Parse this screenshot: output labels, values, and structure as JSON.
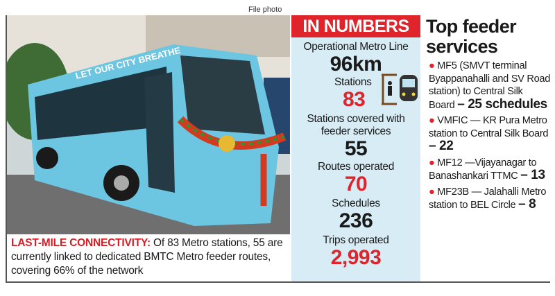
{
  "file_photo": "File photo",
  "bus_sign": "LET OUR CITY BREATHE",
  "photo_caption": {
    "lead": "LAST-MILE CONNECTIVITY:",
    "text": "Of 83 Metro stations, 55 are currently linked to dedicated BMTC Metro feeder routes, covering 66% of the network"
  },
  "numbers": {
    "title": "IN NUMBERS",
    "items": [
      {
        "label": "Operational Metro Line",
        "value": "96km"
      },
      {
        "label": "Stations",
        "value": 83
      },
      {
        "label": "Stations covered with feeder services",
        "value": 55
      },
      {
        "label": "Routes operated",
        "value": 70
      },
      {
        "label": "Schedules",
        "value": 236
      },
      {
        "label": "Trips operated",
        "value": "2,993"
      }
    ]
  },
  "feeder": {
    "title": "Top feeder services",
    "items": [
      {
        "text": "MF5 (SMVT terminal Byappanahalli and SV Road station) to Central Silk Board",
        "schedules": "– 25 schedules"
      },
      {
        "text": "VMFIC — KR Pura Metro station to Central Silk Board",
        "schedules": "– 22"
      },
      {
        "text": "MF12 —Vijayanagar to Banashankari TTMC",
        "schedules": "– 13"
      },
      {
        "text": "MF23B — Jalahalli Metro station to BEL Circle",
        "schedules": "– 8"
      }
    ]
  }
}
